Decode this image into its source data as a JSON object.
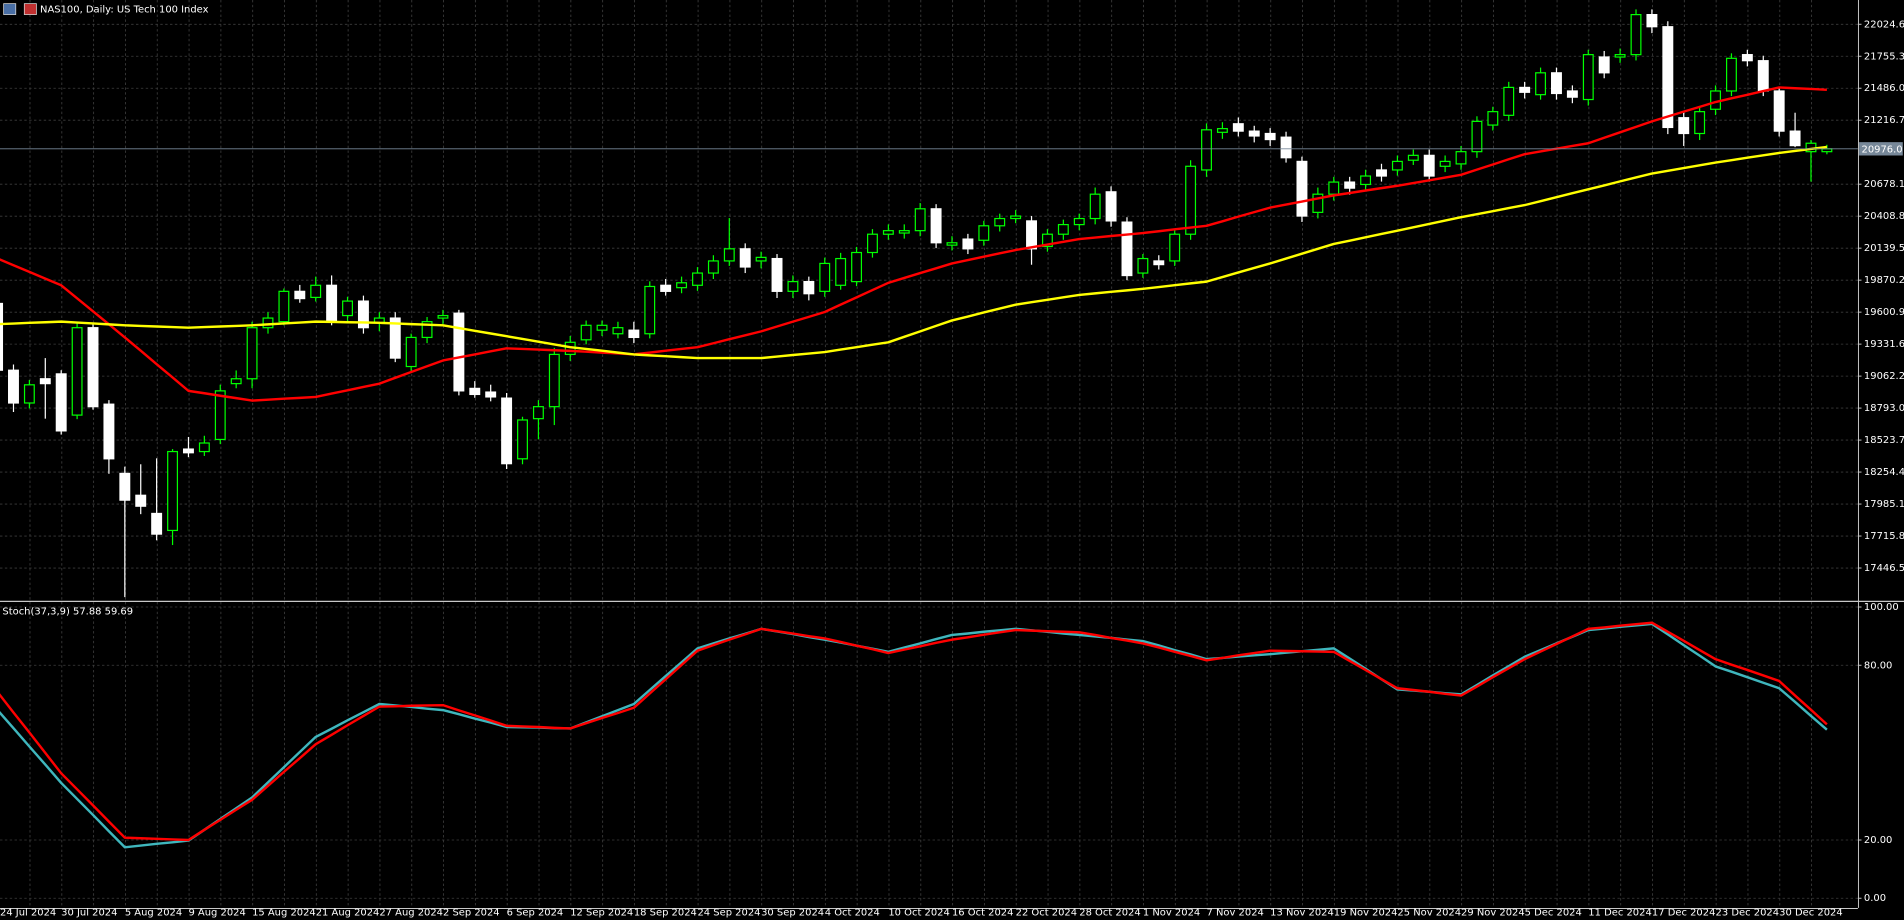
{
  "chart_data": [
    {
      "type": "candlestick",
      "title": "NAS100, Daily: US Tech 100 Index",
      "categories": [
        "24 Jul 2024",
        null,
        null,
        null,
        "30 Jul 2024",
        null,
        null,
        null,
        "5 Aug 2024",
        null,
        null,
        null,
        "9 Aug 2024",
        null,
        null,
        null,
        "15 Aug 2024",
        null,
        null,
        null,
        "21 Aug 2024",
        null,
        null,
        null,
        "27 Aug 2024",
        null,
        null,
        null,
        "2 Sep 2024",
        null,
        null,
        null,
        "6 Sep 2024",
        null,
        null,
        null,
        "12 Sep 2024",
        null,
        null,
        null,
        "18 Sep 2024",
        null,
        null,
        null,
        "24 Sep 2024",
        null,
        null,
        null,
        "30 Sep 2024",
        null,
        null,
        null,
        "4 Oct 2024",
        null,
        null,
        null,
        "10 Oct 2024",
        null,
        null,
        null,
        "16 Oct 2024",
        null,
        null,
        null,
        "22 Oct 2024",
        null,
        null,
        null,
        "28 Oct 2024",
        null,
        null,
        null,
        "1 Nov 2024",
        null,
        null,
        null,
        "7 Nov 2024",
        null,
        null,
        null,
        "13 Nov 2024",
        null,
        null,
        null,
        "19 Nov 2024",
        null,
        null,
        null,
        "25 Nov 2024",
        null,
        null,
        null,
        "29 Nov 2024",
        null,
        null,
        null,
        "5 Dec 2024",
        null,
        null,
        null,
        "11 Dec 2024",
        null,
        null,
        null,
        "17 Dec 2024",
        null,
        null,
        null,
        "23 Dec 2024",
        null,
        null,
        null,
        "30 Dec 2024",
        null,
        null,
        null
      ],
      "open": [
        19674,
        19112,
        18836,
        19040,
        19081,
        18734,
        19470,
        18826,
        18243,
        18059,
        17906,
        17763,
        18448,
        18427,
        18529,
        18999,
        19040,
        19470,
        19521,
        19776,
        19725,
        19827,
        19572,
        19694,
        19511,
        19551,
        19143,
        19388,
        19551,
        19592,
        18959,
        18928,
        18877,
        18366,
        18704,
        18805,
        19245,
        19368,
        19449,
        19419,
        19449,
        19419,
        19827,
        19807,
        19827,
        19930,
        20032,
        20134,
        20032,
        20052,
        19776,
        19858,
        19776,
        19827,
        19858,
        20103,
        20257,
        20267,
        20287,
        20471,
        20165,
        20216,
        20206,
        20328,
        20389,
        20369,
        20154,
        20257,
        20338,
        20389,
        20614,
        20359,
        19930,
        20032,
        20032,
        20257,
        20798,
        21115,
        21187,
        21125,
        21105,
        21074,
        20870,
        20441,
        20594,
        20696,
        20676,
        20798,
        20798,
        20880,
        20921,
        20829,
        20849,
        20952,
        21176,
        21258,
        21493,
        21432,
        21616,
        21463,
        21391,
        21749,
        21749,
        21769,
        22106,
        22004,
        21238,
        21105,
        21309,
        21463,
        21769,
        21718,
        21463,
        21125,
        20952,
        20952
      ],
      "high": [
        19720,
        19160,
        19030,
        19214,
        19112,
        19520,
        19500,
        18860,
        18300,
        18320,
        18370,
        18448,
        18550,
        18560,
        18990,
        19110,
        19520,
        19600,
        19800,
        19830,
        19900,
        19910,
        19730,
        19740,
        19600,
        19600,
        19420,
        19560,
        19620,
        19620,
        19020,
        18990,
        18920,
        18720,
        18860,
        19300,
        19400,
        19530,
        19530,
        19520,
        19520,
        19860,
        19880,
        19900,
        19980,
        20080,
        20393,
        20180,
        20110,
        20090,
        19910,
        19900,
        20060,
        20100,
        20150,
        20300,
        20340,
        20340,
        20520,
        20510,
        20240,
        20260,
        20370,
        20430,
        20460,
        20410,
        20300,
        20380,
        20430,
        20650,
        20660,
        20400,
        20090,
        20080,
        20300,
        20880,
        21190,
        21200,
        21240,
        21170,
        21150,
        21120,
        20910,
        20650,
        20740,
        20740,
        20800,
        20850,
        20920,
        20970,
        20970,
        20920,
        21000,
        21250,
        21330,
        21540,
        21540,
        21660,
        21660,
        21510,
        21810,
        21800,
        21820,
        22150,
        22150,
        22050,
        21280,
        21330,
        21510,
        21780,
        21810,
        21760,
        21500,
        21280,
        21050,
        21010
      ],
      "low": [
        19060,
        18760,
        18790,
        18704,
        18570,
        18700,
        18780,
        18240,
        17201,
        17900,
        17680,
        17640,
        18380,
        18390,
        18490,
        18960,
        18960,
        19420,
        19490,
        19680,
        19690,
        19490,
        19520,
        19420,
        19440,
        19180,
        19100,
        19340,
        19500,
        18900,
        18880,
        18850,
        18280,
        18320,
        18530,
        18650,
        19190,
        19330,
        19400,
        19380,
        19340,
        19380,
        19740,
        19760,
        19780,
        19880,
        19990,
        19930,
        19970,
        19720,
        19720,
        19700,
        19730,
        19790,
        19820,
        20060,
        20210,
        20220,
        20240,
        20140,
        20120,
        20090,
        20160,
        20280,
        20350,
        20000,
        20110,
        20210,
        20290,
        20340,
        20320,
        19870,
        19890,
        19960,
        19990,
        20210,
        20740,
        21060,
        21080,
        21030,
        21000,
        20860,
        20360,
        20390,
        20540,
        20590,
        20620,
        20700,
        20750,
        20840,
        20700,
        20780,
        20800,
        20900,
        21130,
        21210,
        21400,
        21390,
        21390,
        21360,
        21340,
        21570,
        21700,
        21720,
        21950,
        21100,
        21000,
        21050,
        21260,
        21420,
        21670,
        21420,
        21080,
        20990,
        20700,
        20930
      ],
      "close": [
        19112,
        18836,
        18989,
        18999,
        18601,
        19470,
        18805,
        18366,
        18018,
        17967,
        17732,
        18427,
        18417,
        18499,
        18938,
        19040,
        19470,
        19551,
        19776,
        19715,
        19827,
        19521,
        19694,
        19470,
        19551,
        19214,
        19388,
        19521,
        19572,
        18938,
        18908,
        18887,
        18325,
        18693,
        18805,
        19245,
        19347,
        19490,
        19490,
        19470,
        19388,
        19817,
        19776,
        19848,
        19930,
        20032,
        20134,
        19981,
        20062,
        19776,
        19858,
        19756,
        20011,
        20052,
        20103,
        20257,
        20287,
        20287,
        20471,
        20185,
        20185,
        20134,
        20328,
        20389,
        20410,
        20134,
        20257,
        20338,
        20389,
        20594,
        20369,
        19909,
        20052,
        20001,
        20257,
        20829,
        21136,
        21146,
        21125,
        21084,
        21054,
        20901,
        20410,
        20594,
        20696,
        20645,
        20747,
        20747,
        20870,
        20921,
        20747,
        20870,
        20952,
        21207,
        21289,
        21493,
        21452,
        21616,
        21442,
        21411,
        21769,
        21616,
        21769,
        22106,
        22004,
        21156,
        21105,
        21289,
        21463,
        21738,
        21718,
        21463,
        21125,
        21003,
        21023,
        20976
      ],
      "up_color": "#00ff00",
      "down_color": "#ffffff",
      "series": [
        {
          "color": "#ff0000",
          "values": [
            20052,
            19996,
            19940,
            19883,
            19827,
            19717,
            19608,
            19498,
            19388,
            19276,
            19163,
            19051,
            18938,
            18918,
            18897,
            18877,
            18856,
            18864,
            18872,
            18879,
            18887,
            18915,
            18943,
            18971,
            18999,
            19048,
            19097,
            19145,
            19194,
            19220,
            19245,
            19271,
            19296,
            19291,
            19286,
            19280,
            19275,
            19268,
            19260,
            19253,
            19245,
            19260,
            19276,
            19291,
            19306,
            19339,
            19373,
            19406,
            19439,
            19480,
            19521,
            19561,
            19602,
            19664,
            19725,
            19787,
            19848,
            19889,
            19930,
            19970,
            20011,
            20039,
            20068,
            20096,
            20124,
            20147,
            20170,
            20193,
            20216,
            20229,
            20242,
            20254,
            20267,
            20282,
            20298,
            20313,
            20328,
            20366,
            20405,
            20443,
            20481,
            20507,
            20532,
            20558,
            20584,
            20604,
            20625,
            20645,
            20665,
            20688,
            20711,
            20734,
            20757,
            20801,
            20844,
            20888,
            20931,
            20954,
            20977,
            21000,
            21023,
            21069,
            21115,
            21161,
            21207,
            21248,
            21289,
            21329,
            21370,
            21401,
            21431,
            21462,
            21493,
            21486,
            21480,
            21473
          ]
        },
        {
          "color": "#ffff00",
          "values": [
            19500,
            19505,
            19511,
            19516,
            19521,
            19513,
            19506,
            19498,
            19490,
            19485,
            19480,
            19475,
            19470,
            19475,
            19480,
            19485,
            19490,
            19498,
            19506,
            19513,
            19521,
            19519,
            19516,
            19514,
            19511,
            19506,
            19500,
            19495,
            19490,
            19467,
            19444,
            19421,
            19398,
            19375,
            19352,
            19329,
            19306,
            19291,
            19276,
            19260,
            19245,
            19237,
            19230,
            19222,
            19214,
            19214,
            19214,
            19214,
            19214,
            19227,
            19240,
            19252,
            19265,
            19286,
            19306,
            19327,
            19347,
            19393,
            19439,
            19485,
            19531,
            19564,
            19598,
            19631,
            19664,
            19685,
            19705,
            19726,
            19746,
            19759,
            19772,
            19784,
            19797,
            19812,
            19828,
            19843,
            19858,
            19896,
            19935,
            19973,
            20011,
            20052,
            20093,
            20134,
            20175,
            20203,
            20231,
            20259,
            20287,
            20315,
            20344,
            20372,
            20400,
            20426,
            20451,
            20477,
            20502,
            20535,
            20569,
            20602,
            20635,
            20668,
            20702,
            20735,
            20768,
            20791,
            20814,
            20837,
            20860,
            20880,
            20901,
            20921,
            20941,
            20958,
            20975,
            20992
          ]
        }
      ],
      "ylim": [
        17180.8,
        22229
      ],
      "yticks": [
        22024.6,
        21755.3,
        {
          "value": 21486,
          "label": "21486.0"
        },
        21216.7,
        20678.1,
        20408.8,
        20139.5,
        19870.2,
        19600.9,
        19331.6,
        19062.2,
        {
          "value": 18793,
          "label": "18793.0"
        },
        18523.7,
        18254.4,
        17985.1,
        17715.8,
        17446.5
      ],
      "price_marker": {
        "value": 20976,
        "label": "20976.0"
      },
      "grid": true
    },
    {
      "type": "line",
      "title": "Stoch(37,3,9) 57.88 59.69",
      "series": [
        {
          "color": "#3fb6bd",
          "values": [
            64.6,
            58.4,
            52.1,
            45.9,
            39.6,
            34.1,
            28.6,
            23.0,
            17.5,
            18.1,
            18.7,
            19.2,
            19.8,
            23.5,
            27.2,
            30.9,
            34.6,
            39.8,
            45.0,
            50.2,
            55.4,
            58.2,
            61.1,
            63.9,
            66.7,
            66.2,
            65.7,
            65.1,
            64.6,
            63.2,
            61.7,
            60.3,
            58.8,
            58.7,
            58.6,
            58.4,
            58.3,
            60.4,
            62.5,
            64.6,
            66.7,
            71.5,
            76.3,
            81.0,
            85.8,
            87.5,
            89.2,
            90.8,
            92.5,
            91.6,
            90.7,
            89.7,
            88.8,
            87.8,
            86.7,
            85.7,
            84.6,
            86.1,
            87.5,
            89.0,
            90.4,
            90.9,
            91.5,
            92.0,
            92.5,
            92.0,
            91.5,
            90.9,
            90.4,
            89.9,
            89.4,
            88.8,
            88.3,
            86.8,
            85.2,
            83.7,
            82.1,
            82.5,
            83.0,
            83.4,
            83.8,
            84.3,
            84.8,
            85.3,
            85.8,
            82.3,
            78.8,
            75.2,
            71.7,
            71.3,
            70.9,
            70.4,
            70.0,
            73.2,
            76.5,
            79.7,
            82.9,
            85.2,
            87.5,
            89.8,
            92.1,
            92.6,
            93.2,
            93.7,
            94.2,
            90.6,
            86.9,
            83.3,
            79.6,
            77.8,
            75.9,
            74.0,
            72.1,
            67.4,
            62.6,
            57.88
          ]
        },
        {
          "color": "#ff0000",
          "values": [
            70.8,
            63.8,
            56.9,
            49.9,
            42.9,
            37.4,
            31.9,
            26.3,
            20.8,
            20.6,
            20.4,
            20.2,
            20.0,
            23.5,
            26.9,
            30.4,
            33.8,
            38.6,
            43.4,
            48.1,
            52.9,
            56.1,
            59.4,
            62.6,
            65.8,
            65.9,
            66.1,
            66.2,
            66.3,
            64.5,
            62.8,
            61.0,
            59.2,
            59.0,
            58.8,
            58.5,
            58.3,
            60.1,
            61.9,
            63.6,
            65.4,
            70.3,
            75.2,
            80.1,
            85.0,
            86.9,
            88.8,
            90.6,
            92.5,
            91.7,
            90.9,
            90.0,
            89.2,
            88.0,
            86.7,
            85.5,
            84.2,
            85.4,
            86.5,
            87.7,
            88.8,
            89.6,
            90.5,
            91.3,
            92.1,
            91.9,
            91.7,
            91.5,
            91.3,
            90.4,
            89.4,
            88.5,
            87.5,
            86.1,
            84.6,
            83.2,
            81.7,
            82.5,
            83.4,
            84.2,
            85.0,
            84.9,
            84.8,
            84.7,
            84.6,
            81.5,
            78.4,
            75.2,
            72.1,
            71.5,
            70.9,
            70.2,
            69.6,
            72.7,
            75.9,
            79.0,
            82.1,
            84.7,
            87.3,
            89.9,
            92.5,
            93.0,
            93.6,
            94.1,
            94.6,
            91.5,
            88.4,
            85.2,
            82.1,
            80.2,
            78.4,
            76.5,
            74.6,
            69.6,
            64.7,
            59.69
          ]
        }
      ],
      "ylim": [
        -3.3,
        101.3
      ],
      "yticks": [
        {
          "value": 100,
          "label": "100.00"
        },
        {
          "value": 80,
          "label": "80.00"
        },
        {
          "value": 20,
          "label": "20.00"
        },
        {
          "value": 0,
          "label": "0.00"
        }
      ],
      "grid": true
    }
  ]
}
